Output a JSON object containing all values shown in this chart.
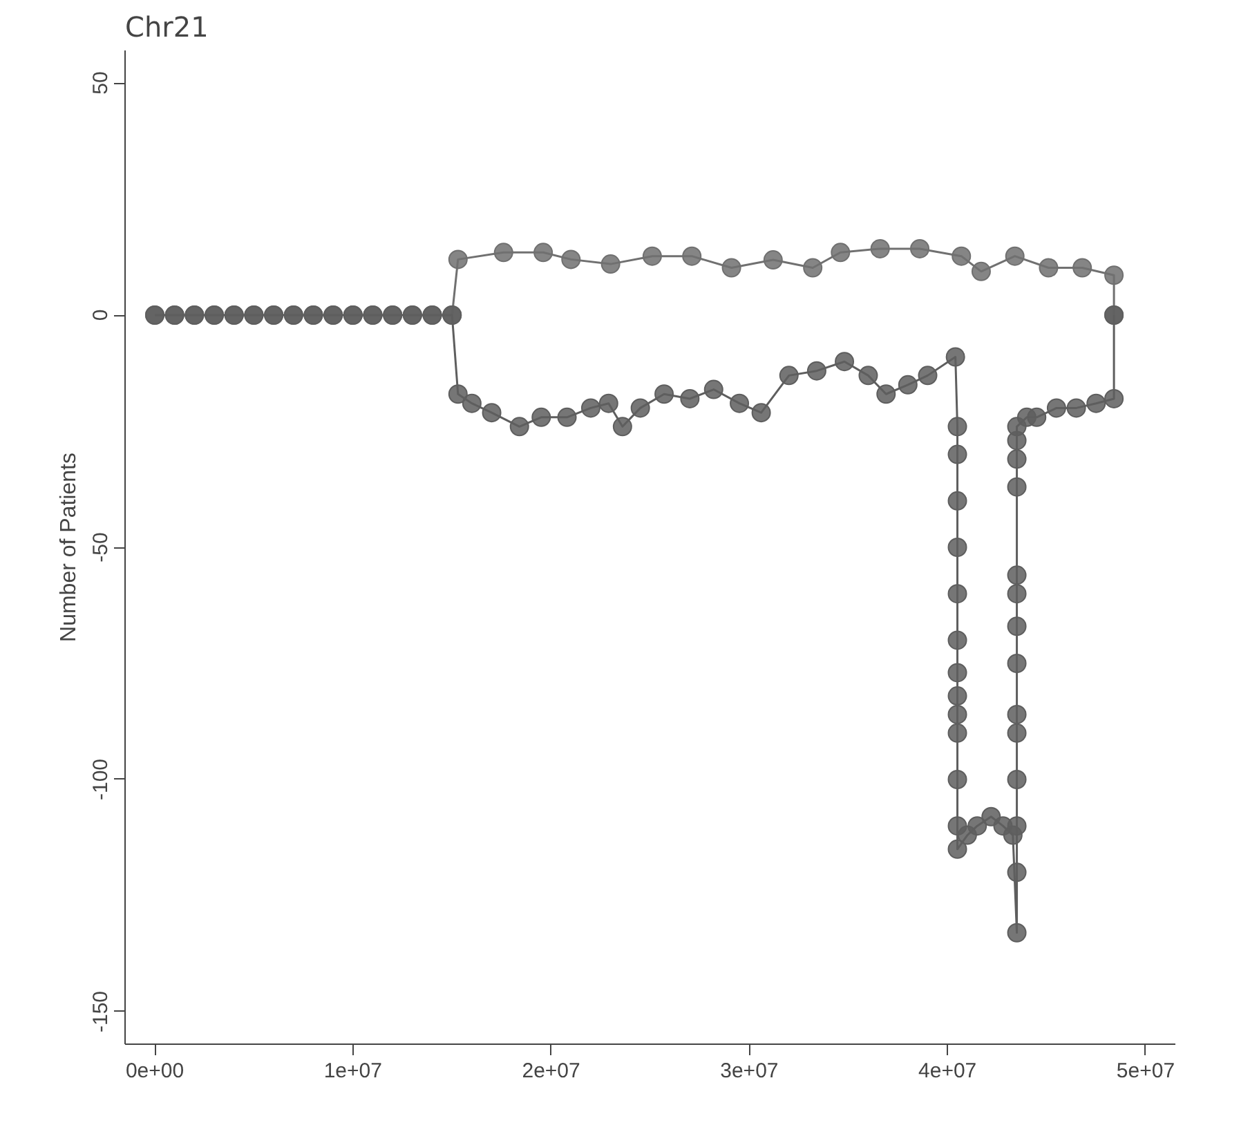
{
  "chart_data": {
    "type": "line",
    "title": "Chr21",
    "ylabel": "Number of Patients",
    "marker": "circle",
    "line_style": "solid",
    "grid": false,
    "xlim": [
      -1500000,
      51500000
    ],
    "ylim": [
      -157,
      57
    ],
    "xticks": [
      {
        "value": 0,
        "label": "0e+00"
      },
      {
        "value": 10000000,
        "label": "1e+07"
      },
      {
        "value": 20000000,
        "label": "2e+07"
      },
      {
        "value": 30000000,
        "label": "3e+07"
      },
      {
        "value": 40000000,
        "label": "4e+07"
      },
      {
        "value": 50000000,
        "label": "5e+07"
      }
    ],
    "yticks": [
      -150,
      -100,
      -50,
      0,
      50
    ],
    "series": [
      {
        "color": "#707070",
        "x": [
          0,
          1000000,
          2000000,
          3000000,
          4000000,
          5000000,
          6000000,
          7000000,
          8000000,
          9000000,
          10000000,
          11000000,
          12000000,
          13000000,
          14000000,
          15000000,
          15300000,
          17600000,
          19600000,
          21000000,
          23000000,
          25100000,
          27100000,
          29100000,
          31200000,
          33200000,
          34600000,
          36600000,
          38600000,
          40700000,
          41700000,
          43400000,
          45100000,
          46800000,
          48400000,
          48400000
        ],
        "values": [
          0,
          0,
          0,
          0,
          0,
          0,
          0,
          0,
          0,
          0,
          0,
          0,
          0,
          0,
          0,
          0,
          12,
          13.5,
          13.5,
          12,
          11,
          12.7,
          12.7,
          10.2,
          11.9,
          10.2,
          13.5,
          14.3,
          14.3,
          12.7,
          9.4,
          12.7,
          10.2,
          10.2,
          8.6,
          0
        ]
      },
      {
        "color": "#5e5e5e",
        "x": [
          0,
          1000000,
          2000000,
          3000000,
          4000000,
          5000000,
          6000000,
          7000000,
          8000000,
          9000000,
          10000000,
          11000000,
          12000000,
          13000000,
          14000000,
          15000000,
          15300000,
          16000000,
          17000000,
          18400000,
          19500000,
          20800000,
          22000000,
          22900000,
          23600000,
          24500000,
          25700000,
          27000000,
          28200000,
          29500000,
          30600000,
          32000000,
          33400000,
          34800000,
          36000000,
          36900000,
          38000000,
          39000000,
          40400000,
          40500000,
          40500000,
          40500000,
          40500000,
          40500000,
          40500000,
          40500000,
          40500000,
          40500000,
          40500000,
          40500000,
          40500000,
          40500000,
          41000000,
          41500000,
          42200000,
          42800000,
          43300000,
          43500000,
          43500000,
          43500000,
          43500000,
          43500000,
          43500000,
          43500000,
          43500000,
          43500000,
          43500000,
          43500000,
          43500000,
          43500000,
          43500000,
          44000000,
          44500000,
          45500000,
          46500000,
          47500000,
          48400000,
          48400000
        ],
        "values": [
          0,
          0,
          0,
          0,
          0,
          0,
          0,
          0,
          0,
          0,
          0,
          0,
          0,
          0,
          0,
          0,
          -17,
          -19,
          -21,
          -24,
          -22,
          -22,
          -20,
          -19,
          -24,
          -20,
          -17,
          -18,
          -16,
          -19,
          -21,
          -13,
          -12,
          -10,
          -13,
          -17,
          -15,
          -13,
          -9,
          -24,
          -30,
          -40,
          -50,
          -60,
          -70,
          -77,
          -82,
          -86,
          -90,
          -100,
          -110,
          -115,
          -112,
          -110,
          -108,
          -110,
          -112,
          -133,
          -120,
          -110,
          -100,
          -90,
          -86,
          -75,
          -67,
          -60,
          -56,
          -37,
          -31,
          -27,
          -24,
          -22,
          -22,
          -20,
          -20,
          -19,
          -18,
          0
        ]
      }
    ]
  }
}
